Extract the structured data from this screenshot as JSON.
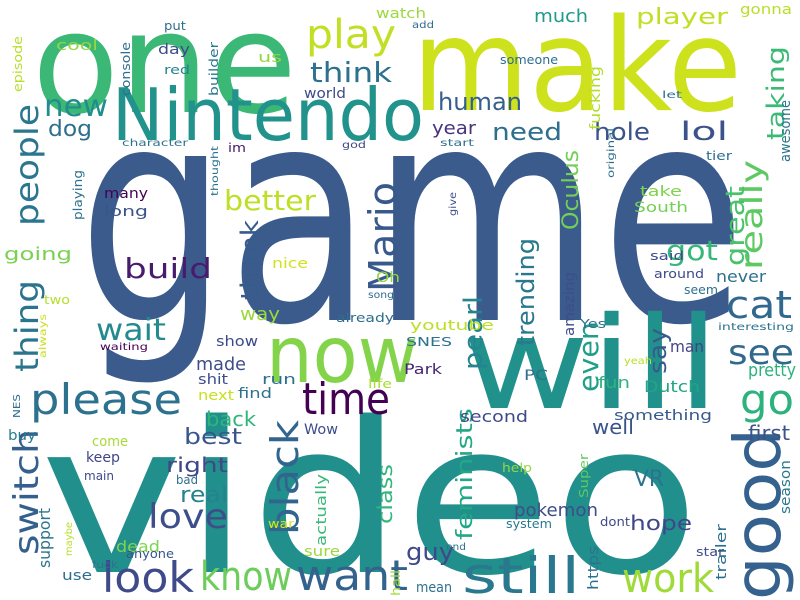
{
  "words": [
    {
      "text": "game",
      "color": "#3b5b8c"
    },
    {
      "text": "video",
      "color": "#21908d"
    },
    {
      "text": "make",
      "color": "#cde11d"
    },
    {
      "text": "one",
      "color": "#3bb875"
    },
    {
      "text": "will",
      "color": "#21918c"
    },
    {
      "text": "Nintendo",
      "color": "#21928c"
    },
    {
      "text": "now",
      "color": "#84d44b"
    },
    {
      "text": "good",
      "color": "#34618d"
    },
    {
      "text": "still",
      "color": "#2a788e"
    },
    {
      "text": "want",
      "color": "#33638d"
    },
    {
      "text": "look",
      "color": "#3e4a89"
    },
    {
      "text": "know",
      "color": "#6ccd5a"
    },
    {
      "text": "work",
      "color": "#a0da39"
    },
    {
      "text": "please",
      "color": "#2c728e"
    },
    {
      "text": "time",
      "color": "#440154"
    },
    {
      "text": "play",
      "color": "#c2df23"
    },
    {
      "text": "go",
      "color": "#2db27d"
    },
    {
      "text": "cat",
      "color": "#31688e"
    },
    {
      "text": "see",
      "color": "#31688e"
    },
    {
      "text": "black",
      "color": "#32658e"
    },
    {
      "text": "switch",
      "color": "#355f8d"
    },
    {
      "text": "Mario",
      "color": "#38598c"
    },
    {
      "text": "people",
      "color": "#2a768e"
    },
    {
      "text": "thing",
      "color": "#2b748e"
    },
    {
      "text": "love",
      "color": "#3d4e8a"
    },
    {
      "text": "wait",
      "color": "#238a8d"
    },
    {
      "text": "new",
      "color": "#228d8d"
    },
    {
      "text": "better",
      "color": "#bddf26"
    },
    {
      "text": "build",
      "color": "#481b6d"
    },
    {
      "text": "got",
      "color": "#35b779"
    },
    {
      "text": "think",
      "color": "#2c718e"
    },
    {
      "text": "really",
      "color": "#5ec962"
    },
    {
      "text": "even",
      "color": "#1f9e89"
    },
    {
      "text": "great",
      "color": "#4ac16d"
    },
    {
      "text": "taking",
      "color": "#3aba76"
    },
    {
      "text": "hole",
      "color": "#3b528b"
    },
    {
      "text": "lol",
      "color": "#3b528b"
    },
    {
      "text": "need",
      "color": "#2e6e8e"
    },
    {
      "text": "human",
      "color": "#355f8d"
    },
    {
      "text": "pearl",
      "color": "#25848e"
    },
    {
      "text": "trending",
      "color": "#2a788e"
    },
    {
      "text": "Oculus",
      "color": "#73d056"
    },
    {
      "text": "dog",
      "color": "#2d708e"
    },
    {
      "text": "player",
      "color": "#c0df25"
    },
    {
      "text": "guy",
      "color": "#3e4989"
    },
    {
      "text": "say",
      "color": "#375a8c"
    },
    {
      "text": "feminists",
      "color": "#22a884"
    },
    {
      "text": "thank",
      "color": "#365c8d"
    },
    {
      "text": "best",
      "color": "#39568c"
    },
    {
      "text": "real",
      "color": "#26828e"
    },
    {
      "text": "right",
      "color": "#404688"
    },
    {
      "text": "hope",
      "color": "#3f4788"
    },
    {
      "text": "pokemon",
      "color": "#3e4c8a"
    },
    {
      "text": "class",
      "color": "#31b57b"
    },
    {
      "text": "VR",
      "color": "#2c738e"
    },
    {
      "text": "first",
      "color": "#3b528b"
    },
    {
      "text": "pretty",
      "color": "#2db27d"
    },
    {
      "text": "back",
      "color": "#2fb47c"
    },
    {
      "text": "well",
      "color": "#3a548c"
    },
    {
      "text": "time",
      "color": "#440154"
    },
    {
      "text": "made",
      "color": "#3d4e8a"
    },
    {
      "text": "man",
      "color": "#404387"
    },
    {
      "text": "way",
      "color": "#9bd93c"
    },
    {
      "text": "much",
      "color": "#1e9b8a"
    },
    {
      "text": "year",
      "color": "#46337e"
    },
    {
      "text": "going",
      "color": "#7ad151"
    },
    {
      "text": "never",
      "color": "#2d708e"
    },
    {
      "text": "nice",
      "color": "#d2e21b"
    },
    {
      "text": "Oh",
      "color": "#93d741"
    },
    {
      "text": "amazing",
      "color": "#3e4c8a"
    },
    {
      "text": "fucking",
      "color": "#b2dd2d"
    },
    {
      "text": "awesome",
      "color": "#2a768e"
    },
    {
      "text": "world",
      "color": "#3e4a89"
    },
    {
      "text": "dead",
      "color": "#7fd34e"
    },
    {
      "text": "support",
      "color": "#2b758e"
    },
    {
      "text": "youtube",
      "color": "#bddf26"
    },
    {
      "text": "second",
      "color": "#3e4989"
    },
    {
      "text": "SNES",
      "color": "#2c718e"
    },
    {
      "text": "Park",
      "color": "#482576"
    },
    {
      "text": "PC",
      "color": "#2e6f8e"
    },
    {
      "text": "fun",
      "color": "#2fb47c"
    },
    {
      "text": "Dutch",
      "color": "#21a685"
    },
    {
      "text": "something",
      "color": "#38598c"
    },
    {
      "text": "season",
      "color": "#2a788e"
    },
    {
      "text": "show",
      "color": "#3e4989"
    },
    {
      "text": "run",
      "color": "#2e6e8e"
    },
    {
      "text": "next",
      "color": "#c8e020"
    },
    {
      "text": "find",
      "color": "#2c718e"
    },
    {
      "text": "shit",
      "color": "#3e4c8a"
    },
    {
      "text": "Wow",
      "color": "#3d4d8a"
    },
    {
      "text": "come",
      "color": "#a5db36"
    },
    {
      "text": "buy",
      "color": "#297b8e"
    },
    {
      "text": "keep",
      "color": "#404588"
    },
    {
      "text": "main",
      "color": "#3e4c8a"
    },
    {
      "text": "bad",
      "color": "#2e6e8e"
    },
    {
      "text": "use",
      "color": "#2f6b8e"
    },
    {
      "text": "sure",
      "color": "#9bd93c"
    },
    {
      "text": "actually",
      "color": "#38b977"
    },
    {
      "text": "mean",
      "color": "#2c728e"
    },
    {
      "text": "https",
      "color": "#2c728e"
    },
    {
      "text": "trailer",
      "color": "#2d708e"
    },
    {
      "text": "Super",
      "color": "#5ec962"
    },
    {
      "text": "system",
      "color": "#2a788e"
    },
    {
      "text": "dont",
      "color": "#3e4a89"
    },
    {
      "text": "star",
      "color": "#3e4c8a"
    },
    {
      "text": "help",
      "color": "#95d840"
    },
    {
      "text": "end",
      "color": "#2c728e"
    },
    {
      "text": "hall",
      "color": "#a2da37"
    },
    {
      "text": "war",
      "color": "#dde318"
    },
    {
      "text": "fuck",
      "color": "#2c728e"
    },
    {
      "text": "maybe",
      "color": "#b8de29"
    },
    {
      "text": "anyone",
      "color": "#3a548c"
    },
    {
      "text": "life",
      "color": "#a8db34"
    },
    {
      "text": "already",
      "color": "#2e6e8e"
    },
    {
      "text": "waiting",
      "color": "#440154"
    },
    {
      "text": "always",
      "color": "#c8e020"
    },
    {
      "text": "NES",
      "color": "#2e6e8e"
    },
    {
      "text": "two",
      "color": "#b5de2b"
    },
    {
      "text": "song",
      "color": "#2e6e8e"
    },
    {
      "text": "interesting",
      "color": "#2c728e"
    },
    {
      "text": "yeah",
      "color": "#b8de29"
    },
    {
      "text": "Yes",
      "color": "#2c728e"
    },
    {
      "text": "seem",
      "color": "#2c728e"
    },
    {
      "text": "around",
      "color": "#3f4788"
    },
    {
      "text": "said",
      "color": "#3e4989"
    },
    {
      "text": "South",
      "color": "#73d056"
    },
    {
      "text": "take",
      "color": "#7fd34e"
    },
    {
      "text": "give",
      "color": "#3e4c8a"
    },
    {
      "text": "tier",
      "color": "#2e6e8e"
    },
    {
      "text": "original",
      "color": "#2e6e8e"
    },
    {
      "text": "start",
      "color": "#2c728e"
    },
    {
      "text": "god",
      "color": "#404588"
    },
    {
      "text": "im",
      "color": "#48186a"
    },
    {
      "text": "thought",
      "color": "#2c728e"
    },
    {
      "text": "character",
      "color": "#2c728e"
    },
    {
      "text": "playing",
      "color": "#2c728e"
    },
    {
      "text": "many",
      "color": "#440154"
    },
    {
      "text": "long",
      "color": "#3a548c"
    },
    {
      "text": "day",
      "color": "#3e4c8a"
    },
    {
      "text": "builder",
      "color": "#2a788e"
    },
    {
      "text": "console",
      "color": "#2e6e8e"
    },
    {
      "text": "red",
      "color": "#26828e"
    },
    {
      "text": "put",
      "color": "#2e6e8e"
    },
    {
      "text": "us",
      "color": "#93d741"
    },
    {
      "text": "cool",
      "color": "#93d741"
    },
    {
      "text": "episode",
      "color": "#b8de29"
    },
    {
      "text": "watch",
      "color": "#9bd93c"
    },
    {
      "text": "add",
      "color": "#2e6e8e"
    },
    {
      "text": "someone",
      "color": "#2e6e8e"
    },
    {
      "text": "let",
      "color": "#2e6e8e"
    },
    {
      "text": "gonna",
      "color": "#b8de29"
    }
  ]
}
